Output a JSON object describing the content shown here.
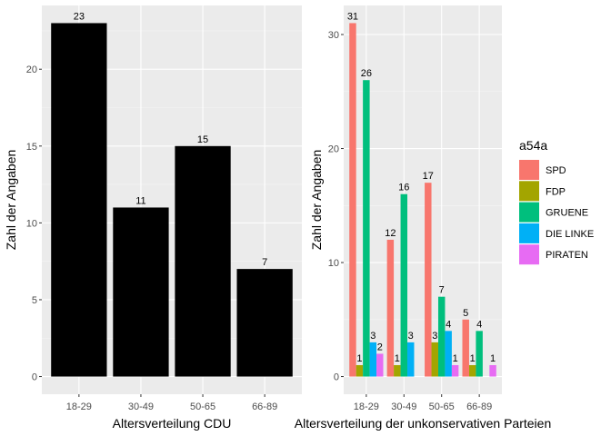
{
  "chart_data": [
    {
      "type": "bar",
      "title": "",
      "xlabel": "Altersverteilung CDU",
      "ylabel": "Zahl der Angaben",
      "categories": [
        "18-29",
        "30-49",
        "50-65",
        "66-89"
      ],
      "values": [
        23,
        11,
        15,
        7
      ],
      "data_labels": [
        "23",
        "11",
        "15",
        "7"
      ],
      "ylim": [
        -1.15,
        24.15
      ],
      "yticks": [
        0,
        5,
        10,
        15,
        20
      ],
      "ytick_labels": [
        "0",
        "5",
        "10",
        "15",
        "20"
      ],
      "bar_color": "#000000",
      "grid": true
    },
    {
      "type": "bar",
      "title": "",
      "xlabel": "Altersverteilung der unkonservativen Parteien",
      "ylabel": "Zahl der Angaben",
      "categories": [
        "18-29",
        "30-49",
        "50-65",
        "66-89"
      ],
      "series": [
        {
          "name": "SPD",
          "color": "#F8766D",
          "values": [
            31,
            12,
            17,
            5
          ]
        },
        {
          "name": "FDP",
          "color": "#A3A500",
          "values": [
            1,
            1,
            3,
            1
          ]
        },
        {
          "name": "GRUENE",
          "color": "#00BF7D",
          "values": [
            26,
            16,
            7,
            4
          ]
        },
        {
          "name": "DIE LINKE",
          "color": "#00B0F6",
          "values": [
            3,
            3,
            4,
            null
          ]
        },
        {
          "name": "PIRATEN",
          "color": "#E76BF3",
          "values": [
            2,
            null,
            1,
            1
          ]
        }
      ],
      "ylim": [
        -1.55,
        32.55
      ],
      "yticks": [
        0,
        10,
        20,
        30
      ],
      "ytick_labels": [
        "0",
        "10",
        "20",
        "30"
      ],
      "legend_title": "a54a",
      "legend_position": "right",
      "grid": true
    }
  ],
  "colors": {
    "panel_background": "#EBEBEB",
    "grid_major": "#FFFFFF",
    "text": "#000000",
    "tick_text": "#4D4D4D"
  }
}
